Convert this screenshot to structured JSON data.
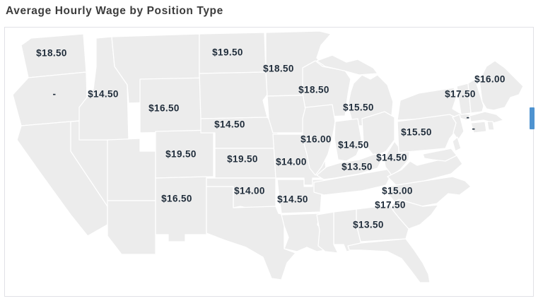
{
  "title": "Average Hourly Wage by Position Type",
  "chart_data": {
    "type": "choropleth",
    "title": "Average Hourly Wage by Position Type",
    "region": "United States (contiguous states)",
    "value_unit": "US dollars per hour",
    "value_format": "$0.00",
    "no_data_label": "-",
    "no_data_color": "#ececec",
    "state_border_color": "#ffffff",
    "label_color": "#1f2c3a",
    "legend_fragment_color": "#4e93d0",
    "color_scale": [
      {
        "value": 13.5,
        "color": "#a6cdeb"
      },
      {
        "value": 14,
        "color": "#97c4e7"
      },
      {
        "value": 14.5,
        "color": "#8bbce4"
      },
      {
        "value": 15,
        "color": "#7eb3e0"
      },
      {
        "value": 15.5,
        "color": "#73abdd"
      },
      {
        "value": 16,
        "color": "#69a5d9"
      },
      {
        "value": 16.5,
        "color": "#5f9ed6"
      },
      {
        "value": 17.5,
        "color": "#4e93d0"
      },
      {
        "value": 18.5,
        "color": "#4389ca"
      },
      {
        "value": 19.5,
        "color": "#3a83c6"
      }
    ],
    "states": [
      {
        "id": "WA",
        "name": "Washington",
        "value": 18.5,
        "label": "$18.50"
      },
      {
        "id": "OR",
        "name": "Oregon",
        "value": null,
        "label": "-"
      },
      {
        "id": "CA",
        "name": "California",
        "value": null,
        "label": ""
      },
      {
        "id": "NV",
        "name": "Nevada",
        "value": null,
        "label": ""
      },
      {
        "id": "ID",
        "name": "Idaho",
        "value": 14.5,
        "label": "$14.50"
      },
      {
        "id": "MT",
        "name": "Montana",
        "value": null,
        "label": ""
      },
      {
        "id": "WY",
        "name": "Wyoming",
        "value": 16.5,
        "label": "$16.50"
      },
      {
        "id": "UT",
        "name": "Utah",
        "value": null,
        "label": ""
      },
      {
        "id": "AZ",
        "name": "Arizona",
        "value": null,
        "label": ""
      },
      {
        "id": "CO",
        "name": "Colorado",
        "value": 19.5,
        "label": "$19.50"
      },
      {
        "id": "NM",
        "name": "New Mexico",
        "value": 16.5,
        "label": "$16.50"
      },
      {
        "id": "ND",
        "name": "North Dakota",
        "value": 19.5,
        "label": "$19.50"
      },
      {
        "id": "SD",
        "name": "South Dakota",
        "value": null,
        "label": ""
      },
      {
        "id": "NE",
        "name": "Nebraska",
        "value": 14.5,
        "label": "$14.50"
      },
      {
        "id": "KS",
        "name": "Kansas",
        "value": 19.5,
        "label": "$19.50"
      },
      {
        "id": "OK",
        "name": "Oklahoma",
        "value": 14,
        "label": "$14.00"
      },
      {
        "id": "TX",
        "name": "Texas",
        "value": null,
        "label": ""
      },
      {
        "id": "MN",
        "name": "Minnesota",
        "value": 18.5,
        "label": "$18.50"
      },
      {
        "id": "IA",
        "name": "Iowa",
        "value": null,
        "label": ""
      },
      {
        "id": "MO",
        "name": "Missouri",
        "value": 14,
        "label": "$14.00"
      },
      {
        "id": "AR",
        "name": "Arkansas",
        "value": 14.5,
        "label": "$14.50"
      },
      {
        "id": "LA",
        "name": "Louisiana",
        "value": null,
        "label": ""
      },
      {
        "id": "WI",
        "name": "Wisconsin",
        "value": 18.5,
        "label": "$18.50"
      },
      {
        "id": "IL",
        "name": "Illinois",
        "value": 16,
        "label": "$16.00"
      },
      {
        "id": "IN",
        "name": "Indiana",
        "value": 14.5,
        "label": "$14.50"
      },
      {
        "id": "MI",
        "name": "Michigan",
        "value": 15.5,
        "label": "$15.50"
      },
      {
        "id": "OH",
        "name": "Ohio",
        "value": null,
        "label": ""
      },
      {
        "id": "KY",
        "name": "Kentucky",
        "value": 13.5,
        "label": "$13.50"
      },
      {
        "id": "TN",
        "name": "Tennessee",
        "value": null,
        "label": ""
      },
      {
        "id": "MS",
        "name": "Mississippi",
        "value": null,
        "label": ""
      },
      {
        "id": "AL",
        "name": "Alabama",
        "value": null,
        "label": ""
      },
      {
        "id": "GA",
        "name": "Georgia",
        "value": 13.5,
        "label": "$13.50"
      },
      {
        "id": "FL",
        "name": "Florida",
        "value": null,
        "label": ""
      },
      {
        "id": "SC",
        "name": "South Carolina",
        "value": 17.5,
        "label": "$17.50"
      },
      {
        "id": "NC",
        "name": "North Carolina",
        "value": 15,
        "label": "$15.00"
      },
      {
        "id": "VA",
        "name": "Virginia",
        "value": null,
        "label": ""
      },
      {
        "id": "WV",
        "name": "West Virginia",
        "value": 14.5,
        "label": "$14.50"
      },
      {
        "id": "MD",
        "name": "Maryland",
        "value": null,
        "label": ""
      },
      {
        "id": "DE",
        "name": "Delaware",
        "value": null,
        "label": ""
      },
      {
        "id": "NJ",
        "name": "New Jersey",
        "value": null,
        "label": ""
      },
      {
        "id": "PA",
        "name": "Pennsylvania",
        "value": 15.5,
        "label": "$15.50"
      },
      {
        "id": "NY",
        "name": "New York",
        "value": null,
        "label": ""
      },
      {
        "id": "VT",
        "name": "Vermont",
        "value": 17.5,
        "label": "$17.50"
      },
      {
        "id": "NH",
        "name": "New Hampshire",
        "value": null,
        "label": "-"
      },
      {
        "id": "MA",
        "name": "Massachusetts",
        "value": null,
        "label": "-"
      },
      {
        "id": "CT",
        "name": "Connecticut",
        "value": null,
        "label": ""
      },
      {
        "id": "RI",
        "name": "Rhode Island",
        "value": null,
        "label": ""
      },
      {
        "id": "ME",
        "name": "Maine",
        "value": 16,
        "label": "$16.00"
      }
    ]
  }
}
